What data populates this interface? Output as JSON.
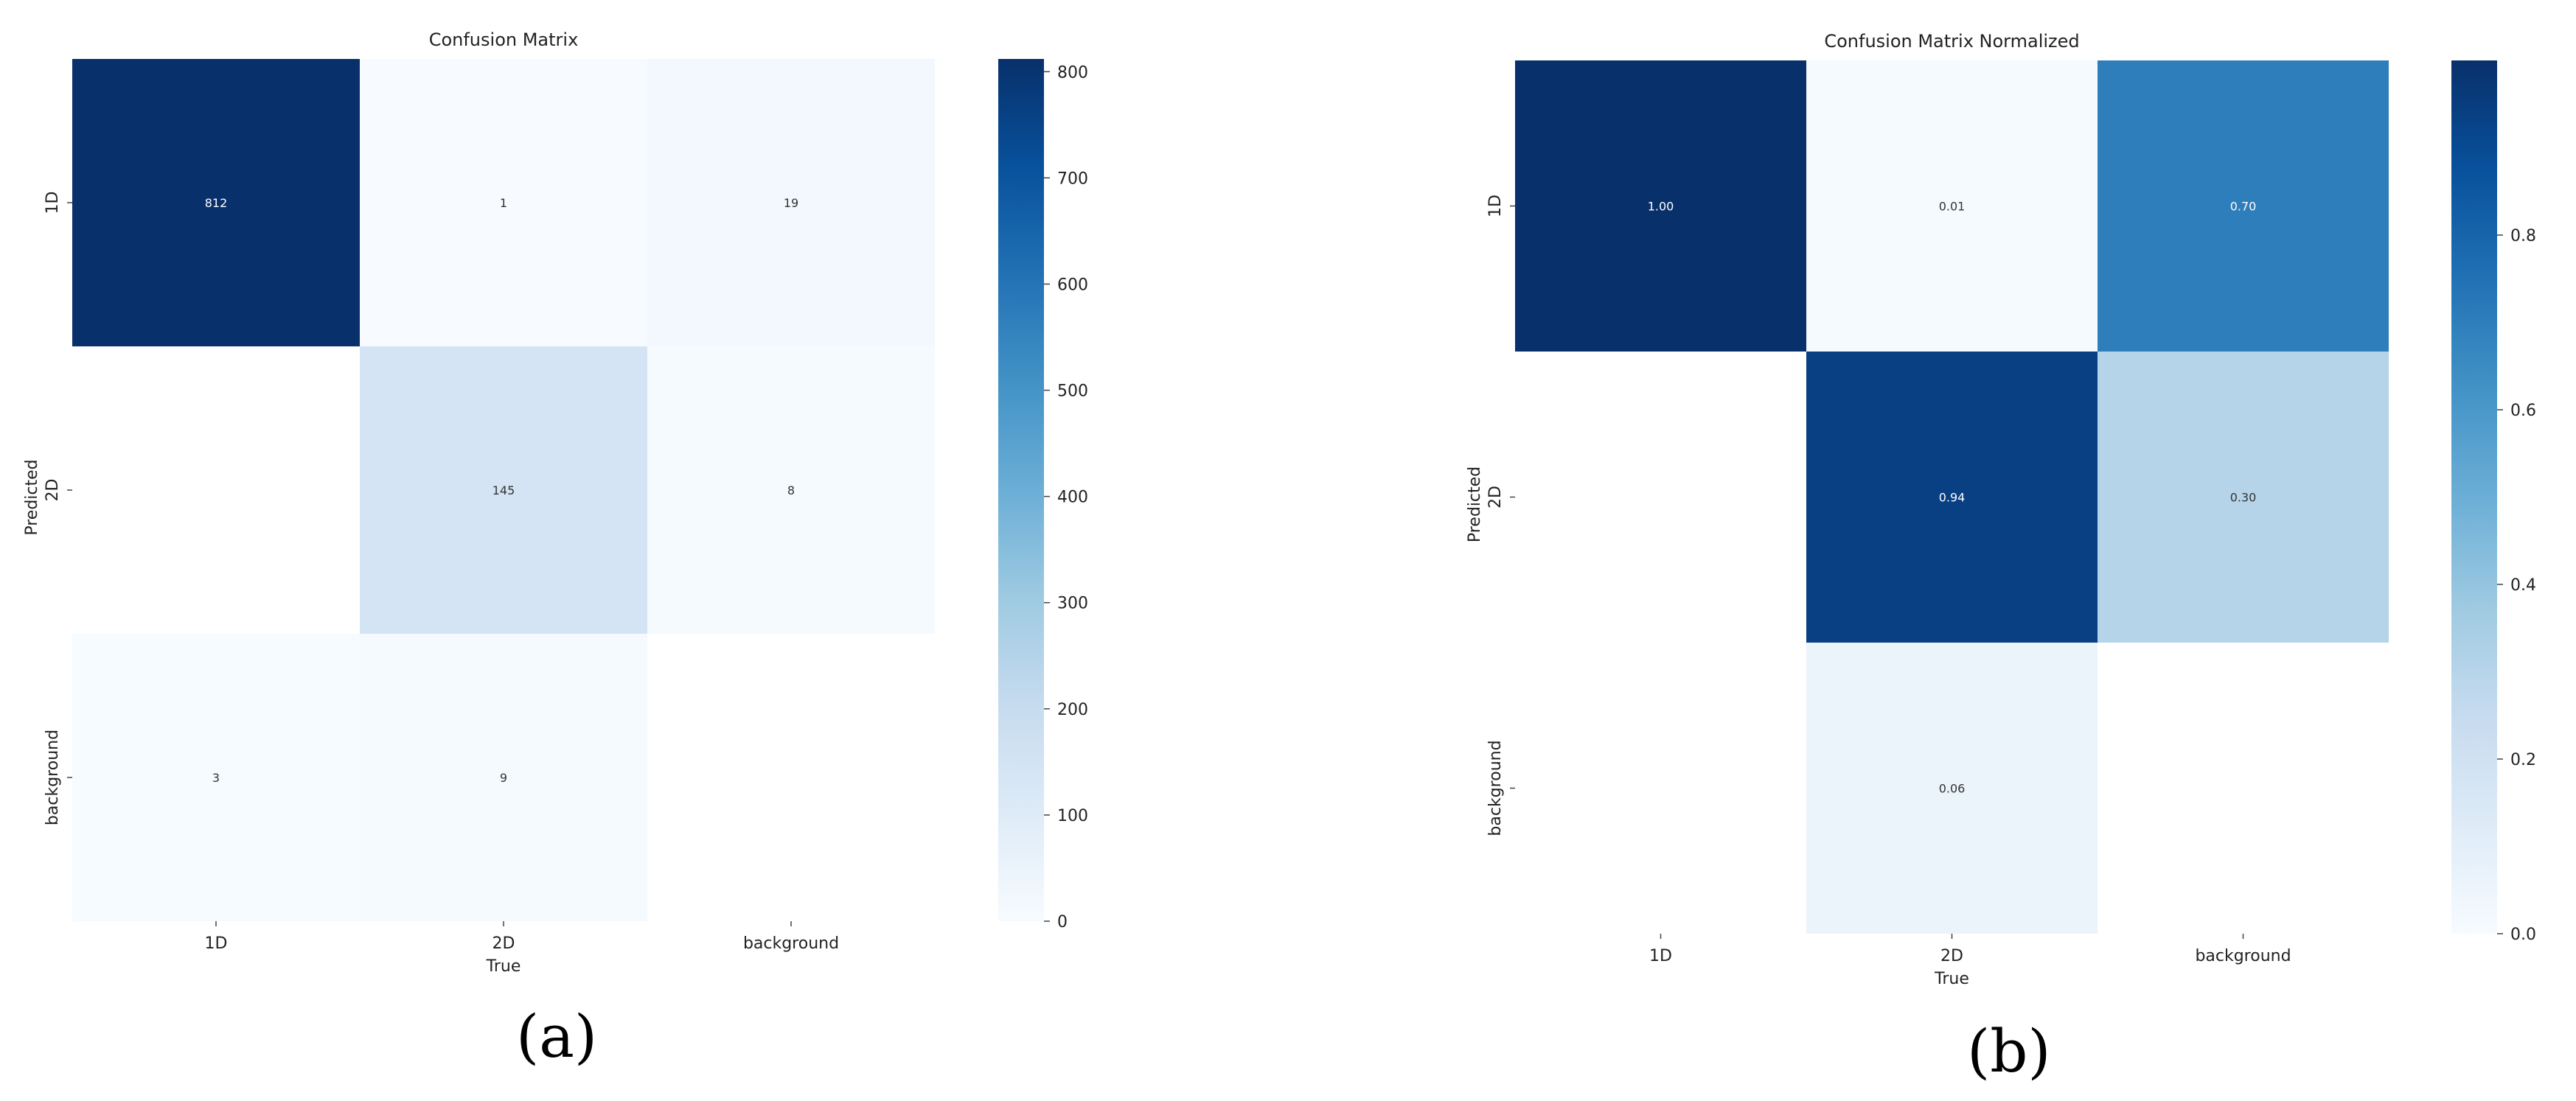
{
  "chart_data": [
    {
      "type": "heatmap",
      "title": "Confusion Matrix",
      "xlabel": "True",
      "ylabel": "Predicted",
      "x_categories": [
        "1D",
        "2D",
        "background"
      ],
      "y_categories": [
        "1D",
        "2D",
        "background"
      ],
      "values": [
        [
          812,
          1,
          19
        ],
        [
          null,
          145,
          8
        ],
        [
          3,
          9,
          null
        ]
      ],
      "cell_labels": [
        [
          "812",
          "1",
          "19"
        ],
        [
          "",
          "145",
          "8"
        ],
        [
          "3",
          "9",
          ""
        ]
      ],
      "colorbar": {
        "min": 0,
        "max": 812,
        "ticks": [
          0,
          100,
          200,
          300,
          400,
          500,
          600,
          700,
          800
        ],
        "tick_labels": [
          "0",
          "100",
          "200",
          "300",
          "400",
          "500",
          "600",
          "700",
          "800"
        ]
      },
      "colormap": "Blues",
      "panel_label": "(a)"
    },
    {
      "type": "heatmap",
      "title": "Confusion Matrix Normalized",
      "xlabel": "True",
      "ylabel": "Predicted",
      "x_categories": [
        "1D",
        "2D",
        "background"
      ],
      "y_categories": [
        "1D",
        "2D",
        "background"
      ],
      "values": [
        [
          1.0,
          0.01,
          0.7
        ],
        [
          null,
          0.94,
          0.3
        ],
        [
          null,
          0.06,
          null
        ]
      ],
      "cell_labels": [
        [
          "1.00",
          "0.01",
          "0.70"
        ],
        [
          "",
          "0.94",
          "0.30"
        ],
        [
          "",
          "0.06",
          ""
        ]
      ],
      "colorbar": {
        "min": 0,
        "max": 1.0,
        "ticks": [
          0.0,
          0.2,
          0.4,
          0.6,
          0.8
        ],
        "tick_labels": [
          "0.0",
          "0.2",
          "0.4",
          "0.6",
          "0.8"
        ]
      },
      "colormap": "Blues",
      "panel_label": "(b)"
    }
  ]
}
